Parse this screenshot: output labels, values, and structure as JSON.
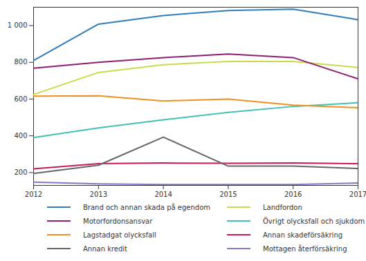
{
  "chart_data": {
    "type": "line",
    "x": [
      2012,
      2013,
      2014,
      2015,
      2016,
      2017
    ],
    "xlim": [
      2012,
      2017
    ],
    "xticks": [
      2012,
      2013,
      2014,
      2015,
      2016,
      2017
    ],
    "ylim": [
      130,
      1100
    ],
    "yticks": [
      200,
      400,
      600,
      800,
      {
        "value": 1000,
        "label": "1 000"
      }
    ],
    "grid": false,
    "legend": "bottom",
    "series": [
      {
        "name": "Brand och annan skada på egendom",
        "color": "#2e7cb8",
        "values": [
          810,
          1008,
          1055,
          1082,
          1090,
          1032
        ]
      },
      {
        "name": "Landfordon",
        "color": "#c9db4c",
        "values": [
          625,
          745,
          787,
          805,
          805,
          772
        ]
      },
      {
        "name": "Motorfordonsansvar",
        "color": "#8e1e73",
        "values": [
          768,
          800,
          826,
          845,
          826,
          710
        ]
      },
      {
        "name": "Övrigt olycksfall och sjukdom",
        "color": "#40c1b6",
        "values": [
          390,
          443,
          487,
          528,
          560,
          580
        ]
      },
      {
        "name": "Lagstadgat olycksfall",
        "color": "#f0901e",
        "values": [
          616,
          618,
          590,
          600,
          567,
          553
        ]
      },
      {
        "name": "Annan skadeförsäkring",
        "color": "#c9195b",
        "values": [
          220,
          248,
          252,
          250,
          252,
          248
        ]
      },
      {
        "name": "Annan kredit",
        "color": "#666666",
        "values": [
          195,
          240,
          393,
          235,
          235,
          222
        ]
      },
      {
        "name": "Mottagen återförsäkring",
        "color": "#8b74c4",
        "values": [
          148,
          138,
          135,
          135,
          135,
          143
        ]
      }
    ]
  }
}
